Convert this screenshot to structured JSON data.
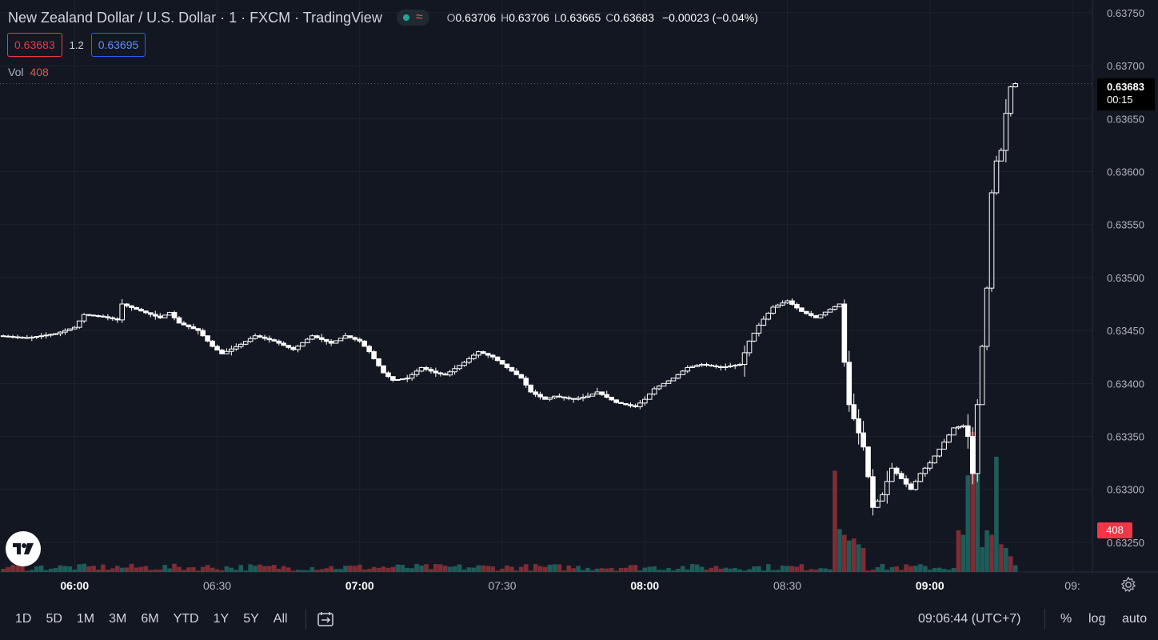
{
  "header": {
    "symbol_title": "New Zealand Dollar / U.S. Dollar · 1 · FXCM · TradingView",
    "status_wave": "≈",
    "ohlc": [
      {
        "key": "O",
        "value": "0.63706"
      },
      {
        "key": "H",
        "value": "0.63706"
      },
      {
        "key": "L",
        "value": "0.63665"
      },
      {
        "key": "C",
        "value": "0.63683"
      }
    ],
    "change": "−0.00023 (−0.04%)",
    "sell_price": "0.63683",
    "spread": "1.2",
    "buy_price": "0.63695",
    "vol_label": "Vol",
    "vol_value": "408"
  },
  "price_tag": {
    "price": "0.63683",
    "countdown": "00:15"
  },
  "volume_tag": "408",
  "bottom": {
    "ranges": [
      "1D",
      "5D",
      "1M",
      "3M",
      "6M",
      "YTD",
      "1Y",
      "5Y",
      "All"
    ],
    "clock": "09:06:44 (UTC+7)",
    "percent": "%",
    "log": "log",
    "auto": "auto"
  },
  "colors": {
    "background": "#131722",
    "grid": "#1e222d",
    "candle_up_fill": "#131722",
    "candle_stroke": "#ffffff",
    "volume_up": "#1e5c5a",
    "volume_down": "#7e2d35",
    "sell": "#f23645",
    "buy": "#2962ff"
  },
  "icons": [
    "status-dot-icon",
    "wave-icon",
    "tradingview-logo-icon",
    "compare-range-icon",
    "gear-icon"
  ],
  "chart_data": {
    "type": "candlestick",
    "symbol": "NZDUSD",
    "interval": "1",
    "y_ticks": [
      "0.63750",
      "0.63700",
      "0.63650",
      "0.63600",
      "0.63550",
      "0.63500",
      "0.63450",
      "0.63400",
      "0.63350",
      "0.63300",
      "0.63250"
    ],
    "x_ticks": [
      {
        "label": "06:00",
        "min": 0,
        "bold": true
      },
      {
        "label": "06:30",
        "min": 30,
        "bold": false
      },
      {
        "label": "07:00",
        "min": 60,
        "bold": true
      },
      {
        "label": "07:30",
        "min": 90,
        "bold": false
      },
      {
        "label": "08:00",
        "min": 120,
        "bold": true
      },
      {
        "label": "08:30",
        "min": 150,
        "bold": false
      },
      {
        "label": "09:00",
        "min": 180,
        "bold": true
      },
      {
        "label": "09:",
        "min": 210,
        "bold": false
      }
    ],
    "ylim": [
      0.63222,
      0.63762
    ],
    "x_start_min": -15.7,
    "x_end_min": 214.2,
    "last_price": 0.63683,
    "anchors": [
      [
        -16,
        0.63445
      ],
      [
        -10,
        0.63443
      ],
      [
        -4,
        0.63447
      ],
      [
        0,
        0.63453
      ],
      [
        2,
        0.63465
      ],
      [
        6,
        0.63463
      ],
      [
        9,
        0.6346
      ],
      [
        10,
        0.63475
      ],
      [
        13,
        0.6347
      ],
      [
        18,
        0.63462
      ],
      [
        20,
        0.63467
      ],
      [
        22,
        0.63457
      ],
      [
        26,
        0.6345
      ],
      [
        29,
        0.63435
      ],
      [
        31,
        0.63428
      ],
      [
        35,
        0.63437
      ],
      [
        38,
        0.63445
      ],
      [
        42,
        0.6344
      ],
      [
        46,
        0.63432
      ],
      [
        50,
        0.63445
      ],
      [
        54,
        0.63438
      ],
      [
        57,
        0.63445
      ],
      [
        60,
        0.6344
      ],
      [
        62,
        0.6343
      ],
      [
        65,
        0.6341
      ],
      [
        67,
        0.63403
      ],
      [
        70,
        0.63405
      ],
      [
        73,
        0.63415
      ],
      [
        76,
        0.6341
      ],
      [
        78,
        0.63408
      ],
      [
        82,
        0.6342
      ],
      [
        85,
        0.6343
      ],
      [
        88,
        0.63425
      ],
      [
        91,
        0.63415
      ],
      [
        94,
        0.63405
      ],
      [
        96,
        0.63392
      ],
      [
        99,
        0.63385
      ],
      [
        101,
        0.63388
      ],
      [
        105,
        0.63385
      ],
      [
        108,
        0.63388
      ],
      [
        110,
        0.63392
      ],
      [
        114,
        0.63382
      ],
      [
        118,
        0.63378
      ],
      [
        120,
        0.63385
      ],
      [
        122,
        0.63395
      ],
      [
        126,
        0.63405
      ],
      [
        129,
        0.63415
      ],
      [
        132,
        0.63418
      ],
      [
        136,
        0.63415
      ],
      [
        140,
        0.63418
      ],
      [
        142,
        0.6344
      ],
      [
        144,
        0.63455
      ],
      [
        147,
        0.63472
      ],
      [
        150,
        0.63478
      ],
      [
        153,
        0.63468
      ],
      [
        156,
        0.63462
      ],
      [
        159,
        0.6347
      ],
      [
        161,
        0.63475
      ],
      [
        162,
        0.6342
      ],
      [
        163,
        0.6338
      ],
      [
        166,
        0.6334
      ],
      [
        167,
        0.63312
      ],
      [
        168,
        0.63283
      ],
      [
        170,
        0.63295
      ],
      [
        172,
        0.6332
      ],
      [
        174,
        0.6331
      ],
      [
        176,
        0.633
      ],
      [
        178,
        0.63315
      ],
      [
        180,
        0.63325
      ],
      [
        182,
        0.63338
      ],
      [
        185,
        0.63358
      ],
      [
        187,
        0.6336
      ],
      [
        188,
        0.6335
      ],
      [
        189,
        0.63315
      ],
      [
        190,
        0.6338
      ],
      [
        192,
        0.6349
      ],
      [
        193,
        0.6358
      ],
      [
        194,
        0.6361
      ],
      [
        195,
        0.6362
      ],
      [
        196,
        0.63655
      ],
      [
        197,
        0.6368
      ],
      [
        198,
        0.63683
      ]
    ],
    "volume": {
      "axis_max": 400,
      "base": 5,
      "spikes": [
        {
          "min": 160,
          "value": 245,
          "dir": "down"
        },
        {
          "min": 161,
          "value": 104,
          "dir": "up"
        },
        {
          "min": 162,
          "value": 90,
          "dir": "down"
        },
        {
          "min": 163,
          "value": 76,
          "dir": "up"
        },
        {
          "min": 164,
          "value": 81,
          "dir": "down"
        },
        {
          "min": 165,
          "value": 67,
          "dir": "up"
        },
        {
          "min": 166,
          "value": 58,
          "dir": "down"
        },
        {
          "min": 186,
          "value": 101,
          "dir": "down"
        },
        {
          "min": 187,
          "value": 90,
          "dir": "up"
        },
        {
          "min": 188,
          "value": 234,
          "dir": "up"
        },
        {
          "min": 189,
          "value": 339,
          "dir": "down"
        },
        {
          "min": 190,
          "value": 299,
          "dir": "up"
        },
        {
          "min": 191,
          "value": 60,
          "dir": "up"
        },
        {
          "min": 192,
          "value": 101,
          "dir": "up"
        },
        {
          "min": 193,
          "value": 90,
          "dir": "down"
        },
        {
          "min": 194,
          "value": 279,
          "dir": "up"
        },
        {
          "min": 195,
          "value": 67,
          "dir": "down"
        },
        {
          "min": 196,
          "value": 58,
          "dir": "up"
        },
        {
          "min": 197,
          "value": 38,
          "dir": "down"
        }
      ]
    }
  }
}
